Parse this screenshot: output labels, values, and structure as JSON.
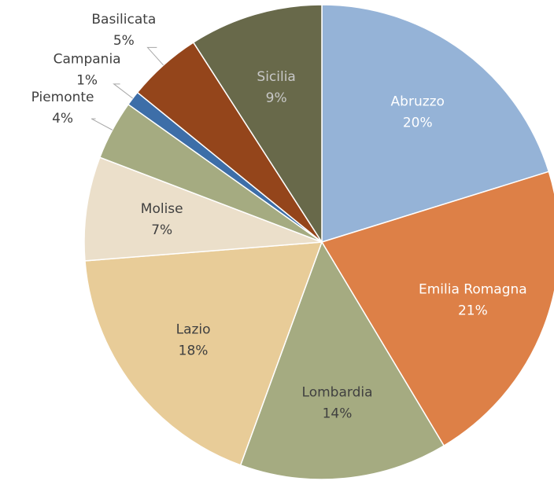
{
  "chart_data": {
    "type": "pie",
    "categories": [
      "Abruzzo",
      "Emilia Romagna",
      "Lombardia",
      "Lazio",
      "Molise",
      "Piemonte",
      "Campania",
      "Basilicata",
      "Sicilia"
    ],
    "values": [
      20,
      21,
      14,
      18,
      7,
      4,
      1,
      5,
      9
    ],
    "value_labels": [
      "20%",
      "21%",
      "14%",
      "18%",
      "7%",
      "4%",
      "1%",
      "5%",
      "9%"
    ],
    "colors": [
      "#95b3d7",
      "#dd8047",
      "#a5ab81",
      "#e8cc98",
      "#ebdfca",
      "#a5ab81",
      "#3d6ea8",
      "#94451b",
      "#68694a"
    ]
  }
}
